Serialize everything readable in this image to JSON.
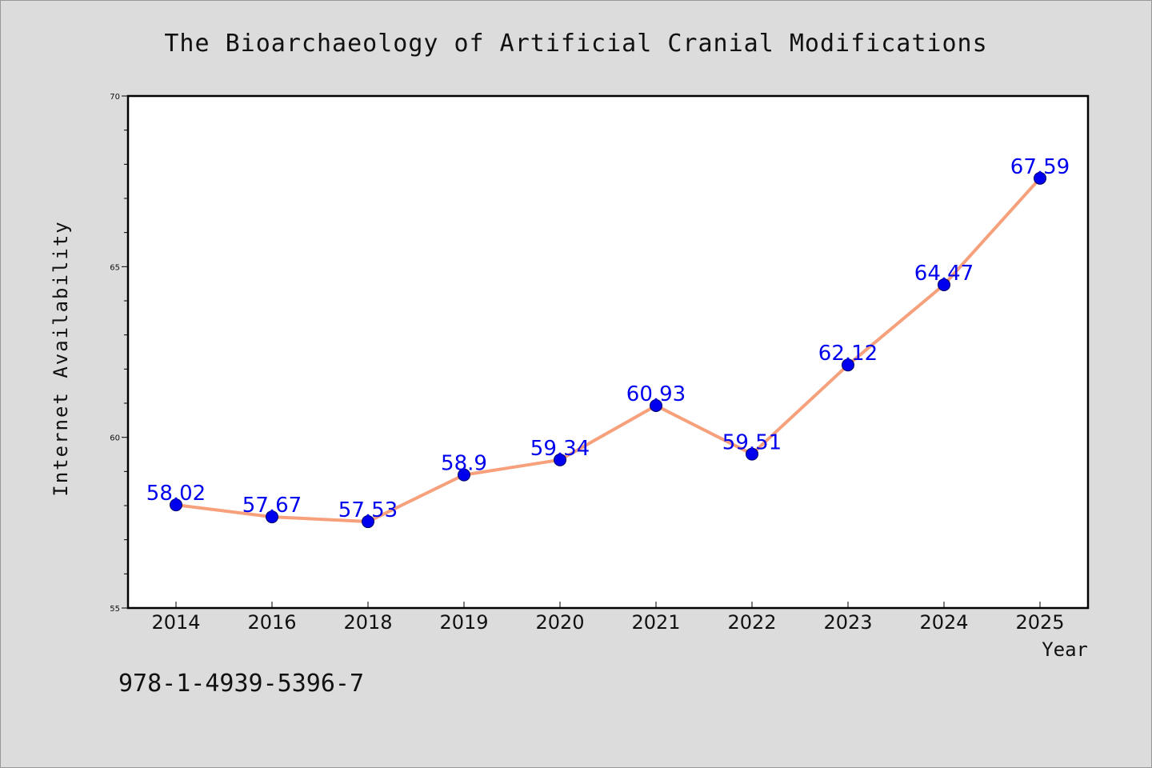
{
  "chart_data": {
    "type": "line",
    "title": "The Bioarchaeology of Artificial Cranial Modifications",
    "xlabel": "Year",
    "ylabel": "Internet Availability",
    "categories": [
      "2014",
      "2016",
      "2018",
      "2019",
      "2020",
      "2021",
      "2022",
      "2023",
      "2024",
      "2025"
    ],
    "series": [
      {
        "values": [
          58.02,
          57.67,
          57.53,
          58.9,
          59.34,
          60.93,
          59.51,
          62.12,
          64.47,
          67.59
        ],
        "data_labels": [
          "58.02",
          "57.67",
          "57.53",
          "58.9",
          "59.34",
          "60.93",
          "59.51",
          "62.12",
          "64.47",
          "67.59"
        ],
        "line_color": "#f7a07c",
        "marker_color": "#0000ee"
      }
    ],
    "ylim": [
      55,
      70
    ],
    "yticks": [
      "55",
      "60",
      "65",
      "70"
    ],
    "grid": false,
    "legend": "none"
  },
  "footnote": "978-1-4939-5396-7"
}
